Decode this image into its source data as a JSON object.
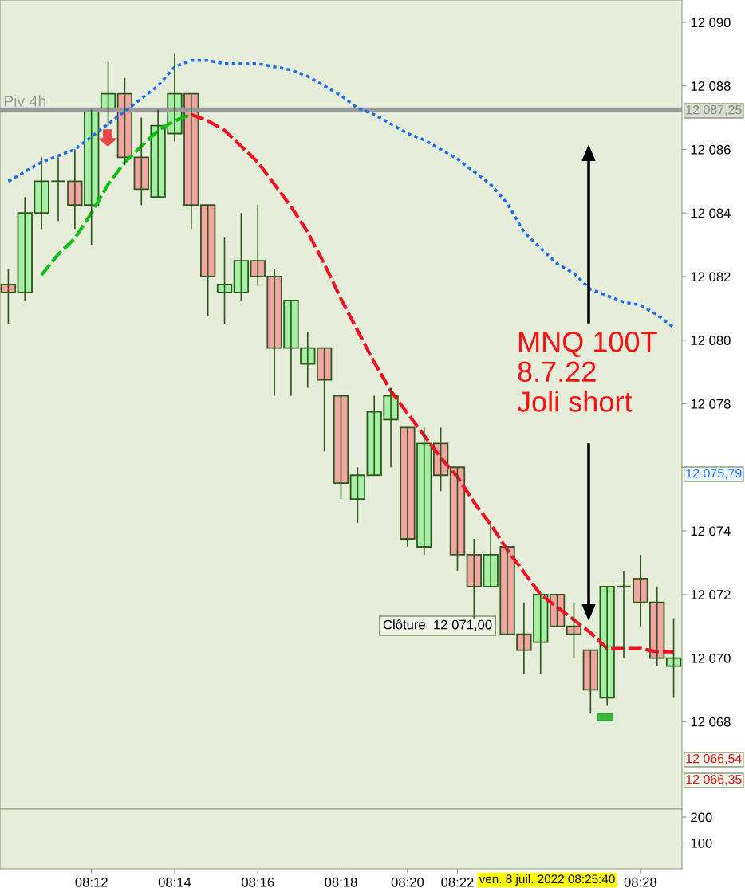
{
  "chart_data": [
    {
      "type": "candlestick",
      "categories": [
        null,
        null,
        null,
        null,
        null,
        null,
        null,
        null,
        null,
        null,
        null,
        null,
        null,
        null,
        null,
        null,
        null,
        null,
        null,
        null,
        null,
        null,
        null,
        null,
        null,
        null,
        null,
        null,
        null,
        null,
        null,
        null,
        null,
        null,
        null,
        null,
        null,
        null,
        null,
        null,
        null
      ],
      "ohlc": [
        [
          12081.75,
          12082.25,
          12080.5,
          12081.5
        ],
        [
          12081.5,
          12084.5,
          12081.25,
          12084
        ],
        [
          12084,
          12085.75,
          12083.5,
          12085
        ],
        [
          12085,
          12085.75,
          12083.75,
          12085
        ],
        [
          12085,
          12086,
          12083.5,
          12084.25
        ],
        [
          12084.25,
          12087.25,
          12083,
          12087.25
        ],
        [
          12087.25,
          12088.75,
          12086.75,
          12087.75
        ],
        [
          12087.75,
          12088.25,
          12085.5,
          12085.75
        ],
        [
          12085.75,
          12087,
          12084.25,
          12084.75
        ],
        [
          12084.5,
          12087.25,
          12084.5,
          12086.75
        ],
        [
          12086.5,
          12089,
          12086.25,
          12087.75
        ],
        [
          12087.75,
          12087.75,
          12083.5,
          12084.25
        ],
        [
          12084.25,
          12084.25,
          12080.75,
          12082
        ],
        [
          12081.5,
          12083.25,
          12080.5,
          12081.75
        ],
        [
          12081.5,
          12084,
          12081.25,
          12082.5
        ],
        [
          12082.5,
          12084.25,
          12081.75,
          12082
        ],
        [
          12082,
          12082.25,
          12078.25,
          12079.75
        ],
        [
          12079.75,
          12081.25,
          12078.25,
          12081.25
        ],
        [
          12079.25,
          12080.25,
          12078.5,
          12079.75
        ],
        [
          12079.75,
          12079.75,
          12076.5,
          12078.75
        ],
        [
          12078.25,
          12078.25,
          12075,
          12075.5
        ],
        [
          12075,
          12076,
          12074.25,
          12075.75
        ],
        [
          12075.75,
          12078.25,
          12075.75,
          12077.75
        ],
        [
          12077.5,
          12078.5,
          12076,
          12078.25
        ],
        [
          12077.25,
          12077.25,
          12073.5,
          12073.75
        ],
        [
          12073.5,
          12077.25,
          12073.25,
          12076.75
        ],
        [
          12076.75,
          12077.25,
          12075.25,
          12075.75
        ],
        [
          12076,
          12076,
          12072.75,
          12073.25
        ],
        [
          12073.25,
          12073.75,
          12071.25,
          12072.25
        ],
        [
          12072.25,
          12074.25,
          12072.25,
          12073.25
        ],
        [
          12073.5,
          12073.5,
          12070.75,
          12070.75
        ],
        [
          12070.75,
          12071.75,
          12069.5,
          12070.25
        ],
        [
          12070.5,
          12072,
          12069.5,
          12072
        ],
        [
          12072,
          12072,
          12071,
          12071
        ],
        [
          12071,
          12071.75,
          12070,
          12070.75
        ],
        [
          12070.25,
          12070.25,
          12068.25,
          12069
        ],
        [
          12068.75,
          12072.25,
          12068.5,
          12072.25
        ],
        [
          12072.25,
          12072.75,
          12070,
          12072.25
        ],
        [
          12072.5,
          12073.25,
          12071,
          12071.75
        ],
        [
          12071.75,
          12072.25,
          12069.75,
          12070
        ],
        [
          12069.75,
          12071.25,
          12068.75,
          12070
        ]
      ],
      "colors": [
        "#f4a4a4",
        "#a6f0a6",
        "#a6f0a6",
        "#2d5a1a",
        "#f4a4a4",
        "#a6f0a6",
        "#a6f0a6",
        "#f4a4a4",
        "#f4a4a4",
        "#a6f0a6",
        "#a6f0a6",
        "#f4a4a4",
        "#f4a4a4",
        "#a6f0a6",
        "#a6f0a6",
        "#f4a4a4",
        "#f4a4a4",
        "#a6f0a6",
        "#a6f0a6",
        "#f4a4a4",
        "#f4a4a4",
        "#a6f0a6",
        "#a6f0a6",
        "#a6f0a6",
        "#f4a4a4",
        "#a6f0a6",
        "#f4a4a4",
        "#f4a4a4",
        "#f4a4a4",
        "#a6f0a6",
        "#f4a4a4",
        "#f4a4a4",
        "#a6f0a6",
        "#f4a4a4",
        "#f4a4a4",
        "#f4a4a4",
        "#a6f0a6",
        "#2d5a1a",
        "#f4a4a4",
        "#f4a4a4",
        "#a6f0a6"
      ],
      "series": [
        {
          "type": "line",
          "color": "#1a6ef0",
          "line_style": "dotted",
          "values": [
            12085.0,
            12085.3,
            12085.6,
            12085.8,
            12086.0,
            12086.4,
            12086.8,
            12087.2,
            12087.6,
            12088.0,
            12088.6,
            12088.8,
            12088.8,
            12088.7,
            12088.7,
            12088.7,
            12088.6,
            12088.5,
            12088.3,
            12088.0,
            12087.7,
            12087.3,
            12087.1,
            12086.8,
            12086.5,
            12086.3,
            12086.0,
            12085.7,
            12085.3,
            12084.9,
            12084.3,
            12083.4,
            12082.9,
            12082.4,
            12082.1,
            12081.6,
            12081.4,
            12081.2,
            12081.1,
            12080.8,
            12080.4
          ]
        },
        {
          "type": "line",
          "color": "#10c010",
          "line_style": "dashed",
          "values": [
            null,
            null,
            12082.05,
            12082.7,
            12083.2,
            12084.0,
            12084.9,
            12085.6,
            12086.1,
            12086.6,
            12086.9,
            12087.1,
            null,
            null,
            null,
            null,
            null,
            null,
            null,
            null,
            null,
            null,
            null,
            null,
            null,
            null,
            null,
            null,
            null,
            null,
            null,
            null,
            null,
            null,
            null,
            null,
            null,
            null,
            null,
            null,
            null
          ]
        },
        {
          "type": "line",
          "color": "#f01020",
          "line_style": "dashed",
          "values": [
            null,
            null,
            null,
            null,
            null,
            null,
            null,
            null,
            null,
            null,
            null,
            12087.1,
            12086.9,
            12086.6,
            12086.1,
            12085.6,
            12084.9,
            12084.2,
            12083.4,
            12082.4,
            12081.3,
            12080.3,
            12079.3,
            12078.4,
            12077.7,
            12077.0,
            12076.3,
            12075.7,
            12074.9,
            12074.2,
            12073.4,
            12072.7,
            12072.0,
            12071.6,
            12071.2,
            12070.8,
            12070.3,
            12070.3,
            12070.3,
            12070.2,
            12070.2
          ]
        }
      ],
      "ylim": [
        12065.25,
        12090.7
      ],
      "yticks": [
        {
          "value": 12068,
          "label": "12 068"
        },
        {
          "value": 12070,
          "label": "12 070"
        },
        {
          "value": 12072,
          "label": "12 072"
        },
        {
          "value": 12074,
          "label": "12 074"
        },
        {
          "value": 12076,
          "label": null
        },
        {
          "value": 12078,
          "label": "12 078"
        },
        {
          "value": 12080,
          "label": "12 080"
        },
        {
          "value": 12082,
          "label": "12 082"
        },
        {
          "value": 12084,
          "label": "12 084"
        },
        {
          "value": 12086,
          "label": "12 086"
        },
        {
          "value": 12088,
          "label": "12 088"
        },
        {
          "value": 12090,
          "label": "12 090"
        }
      ],
      "ref_lines": [
        {
          "axis": "y",
          "value": 12087.25,
          "label": "Piv 4h",
          "color": "#9a9a9a"
        }
      ],
      "annotations": [
        "MNQ 100T\n8.7.22\nJoli short",
        "Clôture  12 071,00",
        "12 087,25",
        "12 075,79",
        "12 066,54",
        "12 066,35"
      ],
      "tick_labels": "y",
      "grid": false,
      "legend": false
    },
    {
      "type": "bar",
      "categories": [
        null,
        null,
        null,
        null,
        null,
        "08:12",
        null,
        null,
        null,
        null,
        "08:14",
        null,
        null,
        null,
        null,
        "08:16",
        null,
        null,
        null,
        null,
        "08:18",
        null,
        null,
        null,
        "08:20",
        null,
        null,
        "08:22",
        null,
        null,
        null,
        null,
        null,
        null,
        null,
        null,
        null,
        null,
        "08:28",
        null,
        null
      ],
      "values": [
        null,
        null,
        null,
        null,
        null,
        null,
        null,
        null,
        null,
        null,
        null,
        null,
        null,
        null,
        null,
        null,
        null,
        null,
        null,
        null,
        null,
        null,
        null,
        null,
        null,
        null,
        null,
        null,
        null,
        null,
        null,
        null,
        null,
        null,
        null,
        null,
        null,
        null,
        null,
        null,
        null
      ],
      "ylim": [
        0,
        231
      ],
      "yticks": [
        100,
        200
      ],
      "annotations": [
        "ven. 8 juil. 2022 08:25:40"
      ],
      "grid": false,
      "legend": false
    }
  ]
}
